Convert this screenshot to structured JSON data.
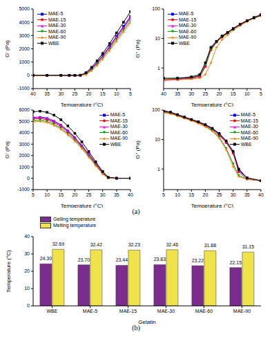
{
  "chart_data": [
    {
      "type": "line",
      "xlabel": "Temperature (°C)",
      "ylabel": "G' (Pa)",
      "xlim": [
        40,
        5
      ],
      "xticks": [
        40,
        35,
        30,
        25,
        20,
        15,
        10,
        5
      ],
      "ylim": [
        -1000,
        5000
      ],
      "yticks": [
        -1000,
        0,
        1000,
        2000,
        3000,
        4000,
        5000
      ],
      "grid": false,
      "legend": "upper left",
      "x": [
        40,
        35,
        30,
        27,
        25,
        23,
        21,
        19,
        17,
        15,
        12.5,
        10,
        7.5,
        5
      ],
      "series": [
        {
          "name": "MAE-5",
          "color": "#0000ff",
          "marker": "square",
          "values": [
            0,
            0,
            0,
            0,
            0,
            5,
            150,
            520,
            980,
            1500,
            2200,
            2950,
            3700,
            4450
          ]
        },
        {
          "name": "MAE-15",
          "color": "#ff0000",
          "marker": "circle",
          "values": [
            0,
            0,
            0,
            0,
            0,
            5,
            130,
            480,
            930,
            1420,
            2100,
            2850,
            3550,
            4300
          ]
        },
        {
          "name": "MAE-30",
          "color": "#ff00ff",
          "marker": "triangle",
          "values": [
            0,
            0,
            0,
            0,
            0,
            5,
            140,
            500,
            950,
            1450,
            2150,
            2900,
            3600,
            4350
          ]
        },
        {
          "name": "MAE-60",
          "color": "#00a000",
          "marker": "triangle-down",
          "values": [
            0,
            0,
            0,
            0,
            0,
            3,
            100,
            420,
            850,
            1320,
            1980,
            2700,
            3400,
            4100
          ]
        },
        {
          "name": "MAE-90",
          "color": "#ff8000",
          "marker": "diamond",
          "values": [
            0,
            0,
            0,
            0,
            0,
            0,
            50,
            330,
            740,
            1200,
            1850,
            2550,
            3250,
            3950
          ]
        },
        {
          "name": "WBE",
          "color": "#000000",
          "marker": "square",
          "values": [
            0,
            0,
            0,
            0,
            0,
            10,
            200,
            600,
            1100,
            1650,
            2400,
            3200,
            4000,
            4800
          ]
        }
      ]
    },
    {
      "type": "line",
      "xlabel": "Temperature (°C)",
      "ylabel": "G'' (Pa)",
      "log": "y",
      "xlim": [
        40,
        5
      ],
      "xticks": [
        40,
        35,
        30,
        25,
        20,
        15,
        10,
        5
      ],
      "ylim": [
        0.2,
        100
      ],
      "yticks": [
        1,
        10,
        100
      ],
      "grid": false,
      "legend": "upper left",
      "x": [
        40,
        35,
        30,
        27,
        25,
        23,
        21,
        19,
        17,
        15,
        12.5,
        10,
        7.5,
        5
      ],
      "series": [
        {
          "name": "MAE-5",
          "color": "#0000ff",
          "marker": "square",
          "values": [
            0.4,
            0.42,
            0.45,
            0.55,
            1.2,
            4.5,
            8,
            12,
            16,
            22,
            30,
            40,
            52,
            65
          ]
        },
        {
          "name": "MAE-15",
          "color": "#ff0000",
          "marker": "circle",
          "values": [
            0.38,
            0.4,
            0.45,
            0.5,
            1.1,
            4,
            7.5,
            11,
            15,
            21,
            29,
            39,
            50,
            63
          ]
        },
        {
          "name": "MAE-30",
          "color": "#ff00ff",
          "marker": "triangle",
          "values": [
            0.4,
            0.42,
            0.47,
            0.55,
            1.3,
            5,
            8,
            12,
            16,
            22,
            31,
            41,
            52,
            64
          ]
        },
        {
          "name": "MAE-60",
          "color": "#00a000",
          "marker": "triangle-down",
          "values": [
            0.42,
            0.44,
            0.48,
            0.55,
            1.2,
            4.2,
            7.5,
            11,
            15,
            21,
            30,
            40,
            51,
            62
          ]
        },
        {
          "name": "MAE-90",
          "color": "#ff8000",
          "marker": "diamond",
          "values": [
            0.4,
            0.4,
            0.42,
            0.45,
            0.6,
            1.5,
            5,
            9,
            13,
            19,
            27,
            37,
            48,
            58
          ]
        },
        {
          "name": "WBE",
          "color": "#000000",
          "marker": "square",
          "values": [
            0.45,
            0.45,
            0.5,
            0.6,
            1.5,
            5,
            8,
            12,
            16,
            21,
            30,
            40,
            50,
            62
          ]
        }
      ]
    },
    {
      "type": "line",
      "xlabel": "Temperature (°C)",
      "ylabel": "G' (Pa)",
      "xlim": [
        5,
        40
      ],
      "xticks": [
        5,
        10,
        15,
        20,
        25,
        30,
        35,
        40
      ],
      "ylim": [
        -1000,
        6000
      ],
      "yticks": [
        -1000,
        0,
        1000,
        2000,
        3000,
        4000,
        5000,
        6000
      ],
      "grid": false,
      "legend": "upper right",
      "x": [
        5,
        7.5,
        10,
        12.5,
        15,
        17.5,
        20,
        22.5,
        25,
        27.5,
        30,
        32,
        35,
        40
      ],
      "series": [
        {
          "name": "MAE-5",
          "color": "#0000ff",
          "marker": "square",
          "values": [
            5300,
            5350,
            5250,
            5000,
            4650,
            4150,
            3550,
            2850,
            2100,
            1300,
            520,
            60,
            0,
            0
          ]
        },
        {
          "name": "MAE-15",
          "color": "#ff0000",
          "marker": "circle",
          "values": [
            5200,
            5250,
            5150,
            4900,
            4550,
            4050,
            3450,
            2800,
            2050,
            1250,
            480,
            50,
            0,
            0
          ]
        },
        {
          "name": "MAE-30",
          "color": "#ff00ff",
          "marker": "triangle",
          "values": [
            5350,
            5400,
            5300,
            5050,
            4700,
            4200,
            3600,
            2900,
            2150,
            1350,
            550,
            70,
            0,
            0
          ]
        },
        {
          "name": "MAE-60",
          "color": "#00a000",
          "marker": "triangle-down",
          "values": [
            5050,
            5100,
            5000,
            4750,
            4400,
            3900,
            3350,
            2700,
            1950,
            1180,
            430,
            30,
            0,
            0
          ]
        },
        {
          "name": "MAE-90",
          "color": "#ff8000",
          "marker": "diamond",
          "values": [
            4950,
            5000,
            4900,
            4650,
            4300,
            3800,
            3250,
            2600,
            1850,
            1080,
            350,
            10,
            0,
            0
          ]
        },
        {
          "name": "WBE",
          "color": "#000000",
          "marker": "square",
          "values": [
            5850,
            5900,
            5800,
            5550,
            5150,
            4600,
            3950,
            3200,
            2350,
            1450,
            600,
            80,
            0,
            0
          ]
        }
      ]
    },
    {
      "type": "line",
      "xlabel": "Temperature (°C)",
      "ylabel": "G'' (Pa)",
      "log": "y",
      "xlim": [
        5,
        40
      ],
      "xticks": [
        5,
        10,
        15,
        20,
        25,
        30,
        35,
        40
      ],
      "ylim": [
        0.2,
        100
      ],
      "yticks": [
        1,
        10,
        100
      ],
      "grid": false,
      "legend": "upper right",
      "annotations": [
        "(a)"
      ],
      "x": [
        5,
        7.5,
        10,
        12.5,
        15,
        17.5,
        20,
        22.5,
        25,
        27.5,
        30,
        32,
        35,
        40
      ],
      "series": [
        {
          "name": "MAE-5",
          "color": "#0000ff",
          "marker": "square",
          "values": [
            90,
            82,
            68,
            56,
            47,
            39,
            31,
            23,
            15,
            8,
            3.5,
            0.9,
            0.5,
            0.4
          ]
        },
        {
          "name": "MAE-15",
          "color": "#ff0000",
          "marker": "circle",
          "values": [
            88,
            80,
            66,
            55,
            46,
            38,
            30,
            22,
            14,
            8,
            3.5,
            0.8,
            0.45,
            0.4
          ]
        },
        {
          "name": "MAE-30",
          "color": "#ff00ff",
          "marker": "triangle",
          "values": [
            92,
            84,
            70,
            58,
            48,
            40,
            32,
            24,
            16,
            9,
            4,
            1,
            0.5,
            0.4
          ]
        },
        {
          "name": "MAE-60",
          "color": "#00a000",
          "marker": "triangle-down",
          "values": [
            85,
            78,
            64,
            53,
            44,
            36,
            28,
            20,
            12,
            5,
            1.5,
            0.6,
            0.45,
            0.4
          ]
        },
        {
          "name": "MAE-90",
          "color": "#ff8000",
          "marker": "diamond",
          "values": [
            80,
            74,
            62,
            52,
            43,
            35,
            27,
            19,
            11,
            4.5,
            1.2,
            0.55,
            0.45,
            0.4
          ]
        },
        {
          "name": "WBE",
          "color": "#000000",
          "marker": "square",
          "values": [
            95,
            85,
            70,
            58,
            48,
            40,
            32,
            24,
            16,
            9,
            4,
            1,
            0.5,
            0.4
          ]
        }
      ]
    },
    {
      "type": "bar",
      "xlabel": "Gelatin",
      "ylabel": "Temperature (°C)",
      "ylim": [
        0,
        40
      ],
      "yticks": [
        0,
        10,
        20,
        30,
        40
      ],
      "grid": false,
      "legend": "upper left",
      "data_labels": true,
      "annotations": [
        "(b)"
      ],
      "categories": [
        "WBE",
        "MAE-5",
        "MAE-15",
        "MAE-30",
        "MAE-60",
        "MAE-90"
      ],
      "series": [
        {
          "name": "Gelling temperature",
          "color": "#7b2d8e",
          "values": [
            24.3,
            23.7,
            23.44,
            23.83,
            23.22,
            22.15
          ],
          "value_labels": [
            "24.30",
            "23.70",
            "23.44",
            "23.83",
            "23.22",
            "22.15"
          ]
        },
        {
          "name": "Melting temperature",
          "color": "#f0e24a",
          "values": [
            32.69,
            32.42,
            32.23,
            32.46,
            31.88,
            31.15
          ],
          "value_labels": [
            "32.69",
            "32.42",
            "32.23",
            "32.46",
            "31.88",
            "31.15"
          ]
        }
      ]
    }
  ]
}
